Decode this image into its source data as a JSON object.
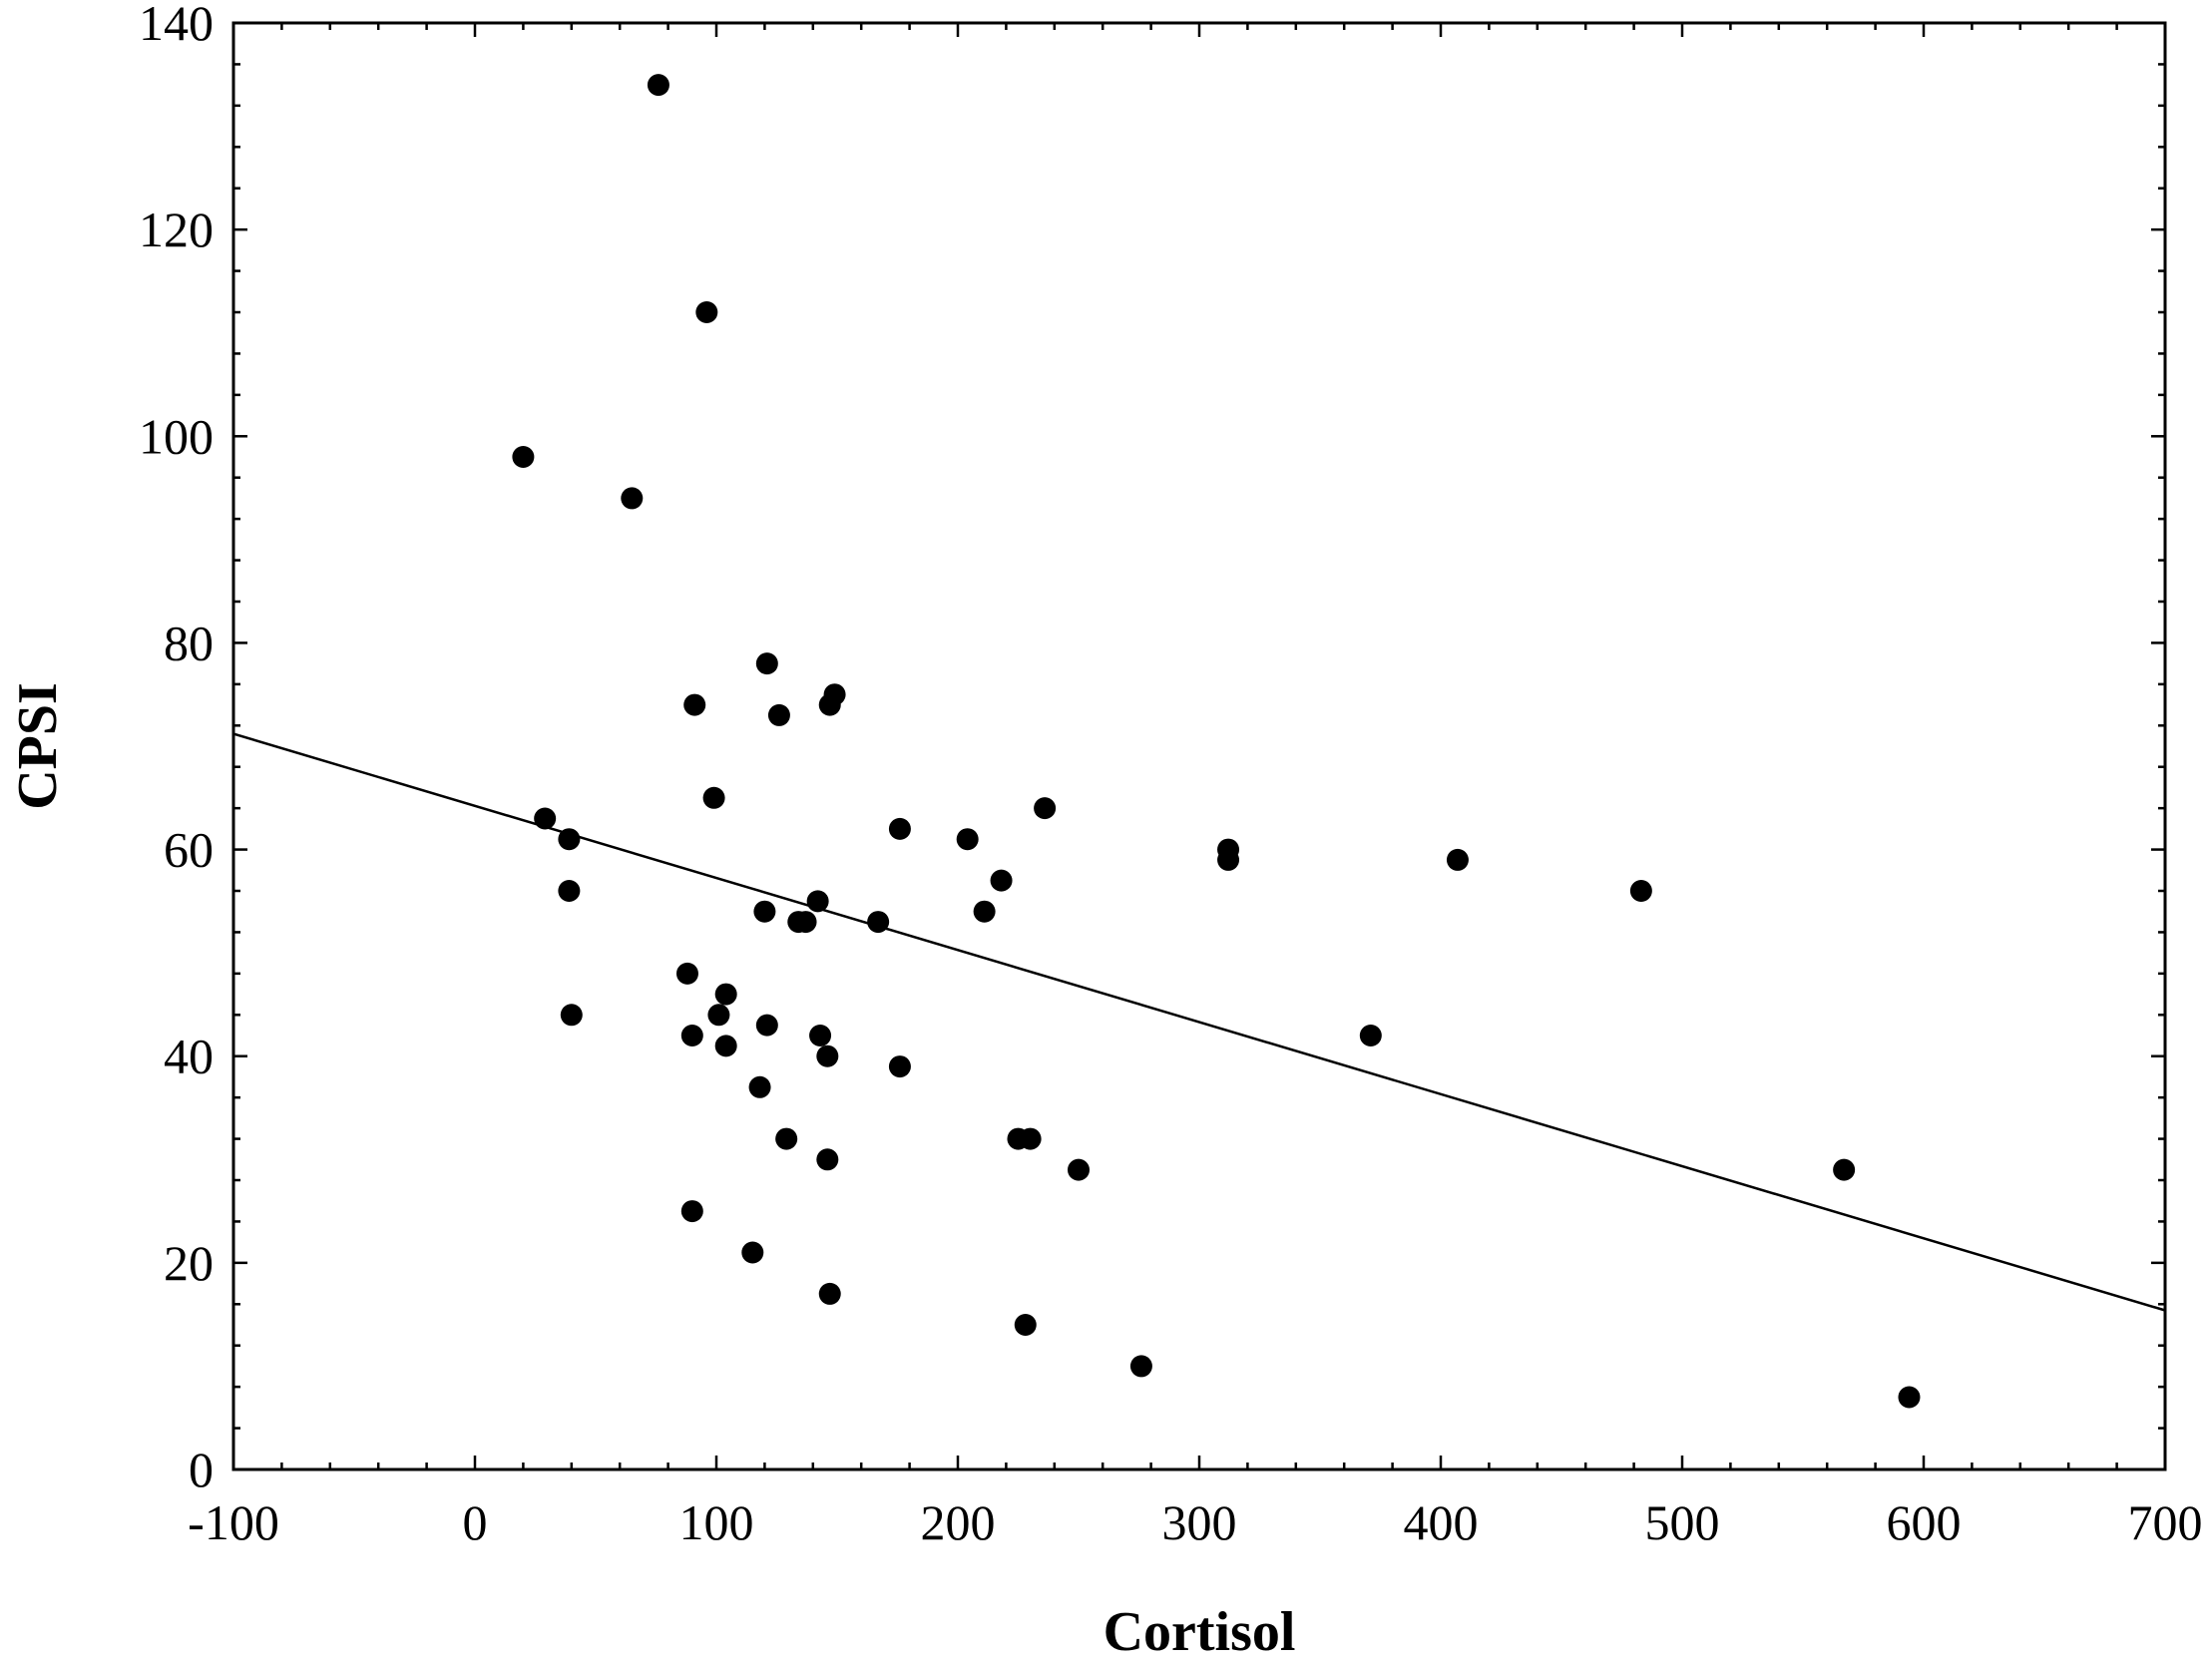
{
  "chart_data": {
    "type": "scatter",
    "title": "",
    "xlabel": "Cortisol",
    "ylabel": "CPSI",
    "xlim": [
      -100,
      700
    ],
    "ylim": [
      0,
      140
    ],
    "x_ticks": [
      -100,
      0,
      100,
      200,
      300,
      400,
      500,
      600,
      700
    ],
    "y_ticks": [
      0,
      20,
      40,
      60,
      80,
      100,
      120,
      140
    ],
    "x_tick_labels": [
      "-100",
      "0",
      "100",
      "200",
      "300",
      "400",
      "500",
      "600",
      "700"
    ],
    "y_tick_labels": [
      "0",
      "20",
      "40",
      "60",
      "80",
      "100",
      "120",
      "140"
    ],
    "grid": false,
    "legend": "none",
    "marker_color": "#000000",
    "points": [
      {
        "x": 76,
        "y": 134
      },
      {
        "x": 96,
        "y": 112
      },
      {
        "x": 20,
        "y": 98
      },
      {
        "x": 65,
        "y": 94
      },
      {
        "x": 121,
        "y": 78
      },
      {
        "x": 91,
        "y": 74
      },
      {
        "x": 149,
        "y": 75
      },
      {
        "x": 147,
        "y": 74
      },
      {
        "x": 126,
        "y": 73
      },
      {
        "x": 99,
        "y": 65
      },
      {
        "x": 29,
        "y": 63
      },
      {
        "x": 39,
        "y": 61
      },
      {
        "x": 176,
        "y": 62
      },
      {
        "x": 204,
        "y": 61
      },
      {
        "x": 236,
        "y": 64
      },
      {
        "x": 312,
        "y": 60
      },
      {
        "x": 312,
        "y": 59
      },
      {
        "x": 407,
        "y": 59
      },
      {
        "x": 483,
        "y": 56
      },
      {
        "x": 39,
        "y": 56
      },
      {
        "x": 142,
        "y": 55
      },
      {
        "x": 120,
        "y": 54
      },
      {
        "x": 134,
        "y": 53
      },
      {
        "x": 137,
        "y": 53
      },
      {
        "x": 167,
        "y": 53
      },
      {
        "x": 211,
        "y": 54
      },
      {
        "x": 218,
        "y": 57
      },
      {
        "x": 88,
        "y": 48
      },
      {
        "x": 104,
        "y": 46
      },
      {
        "x": 40,
        "y": 44
      },
      {
        "x": 101,
        "y": 44
      },
      {
        "x": 121,
        "y": 43
      },
      {
        "x": 90,
        "y": 42
      },
      {
        "x": 143,
        "y": 42
      },
      {
        "x": 104,
        "y": 41
      },
      {
        "x": 146,
        "y": 40
      },
      {
        "x": 176,
        "y": 39
      },
      {
        "x": 371,
        "y": 42
      },
      {
        "x": 118,
        "y": 37
      },
      {
        "x": 129,
        "y": 32
      },
      {
        "x": 225,
        "y": 32
      },
      {
        "x": 230,
        "y": 32
      },
      {
        "x": 146,
        "y": 30
      },
      {
        "x": 250,
        "y": 29
      },
      {
        "x": 567,
        "y": 29
      },
      {
        "x": 90,
        "y": 25
      },
      {
        "x": 115,
        "y": 21
      },
      {
        "x": 147,
        "y": 17
      },
      {
        "x": 228,
        "y": 14
      },
      {
        "x": 276,
        "y": 10
      },
      {
        "x": 594,
        "y": 7
      }
    ],
    "trendline": {
      "type": "linear",
      "x": [
        -100,
        700
      ],
      "y": [
        71.2,
        15.4
      ]
    }
  }
}
